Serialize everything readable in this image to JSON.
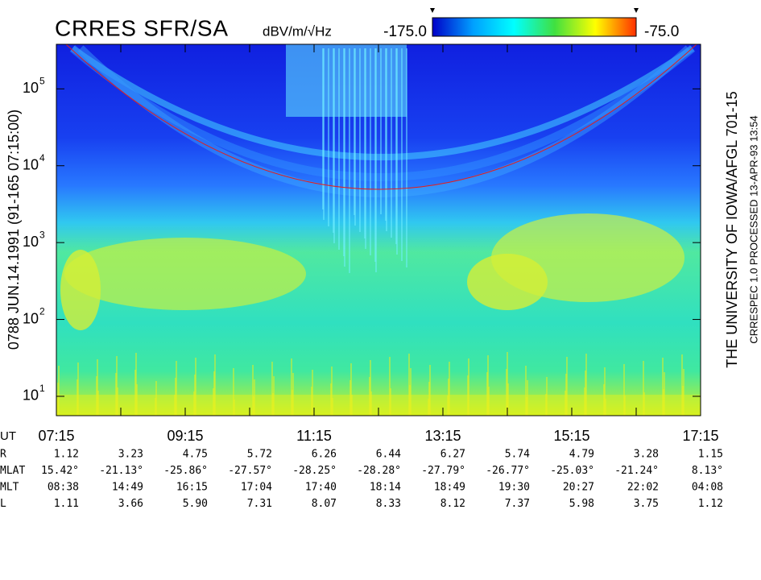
{
  "chart_data": {
    "type": "spectrogram",
    "title": "CRRES SFR/SA",
    "colorbar": {
      "label": "dBV/m/√Hz",
      "ticks": [
        {
          "value": -175,
          "label": "-175.0"
        },
        {
          "value": -75,
          "label": "-75.0"
        }
      ]
    },
    "left_label": "0788  JUN.14.1991  (91-165 07:15:00)",
    "right_label": "THE UNIVERSITY OF IOWA/AFGL 701-15",
    "right_sublabel": "CRRESPEC 1.0   PROCESSED 13-APR-93  13:54",
    "log_scale": true,
    "ylim": [
      5.6,
      380000
    ],
    "yticks": [
      {
        "value": 10,
        "label": "10",
        "exp": "1"
      },
      {
        "value": 100,
        "label": "10",
        "exp": "2"
      },
      {
        "value": 1000,
        "label": "10",
        "exp": "3"
      },
      {
        "value": 10000,
        "label": "10",
        "exp": "4"
      },
      {
        "value": 100000,
        "label": "10",
        "exp": "5"
      }
    ],
    "x_row_label": "UT",
    "categories": [
      "07:15",
      null,
      "09:15",
      null,
      "11:15",
      null,
      "13:15",
      null,
      "15:15",
      null,
      "17:15"
    ],
    "ephemeris": [
      {
        "name": "R",
        "values": [
          "1.12",
          "3.23",
          "4.75",
          "5.72",
          "6.26",
          "6.44",
          "6.27",
          "5.74",
          "4.79",
          "3.28",
          "1.15"
        ]
      },
      {
        "name": "MLAT",
        "values": [
          "15.42°",
          "-21.13°",
          "-25.86°",
          "-27.57°",
          "-28.25°",
          "-28.28°",
          "-27.79°",
          "-26.77°",
          "-25.03°",
          "-21.24°",
          "8.13°"
        ]
      },
      {
        "name": "MLT",
        "values": [
          "08:38",
          "14:49",
          "16:15",
          "17:04",
          "17:40",
          "18:14",
          "18:49",
          "19:30",
          "20:27",
          "22:02",
          "04:08"
        ]
      },
      {
        "name": "L",
        "values": [
          "1.11",
          "3.66",
          "5.90",
          "7.31",
          "8.07",
          "8.33",
          "8.12",
          "7.37",
          "5.98",
          "3.75",
          "1.12"
        ]
      }
    ]
  }
}
